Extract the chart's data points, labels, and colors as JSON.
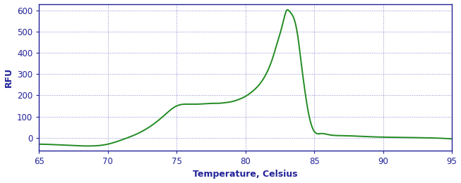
{
  "title": "",
  "xlabel": "Temperature, Celsius",
  "ylabel": "RFU",
  "xlim": [
    65,
    95
  ],
  "ylim": [
    -60,
    630
  ],
  "xticks": [
    65,
    70,
    75,
    80,
    85,
    90,
    95
  ],
  "yticks": [
    0,
    100,
    200,
    300,
    400,
    500,
    600
  ],
  "line_color": "#228B22",
  "line_width": 1.4,
  "background_color": "#ffffff",
  "grid_color": "#8888cc",
  "grid_linestyle": ":",
  "spine_color": "#222299",
  "tick_label_color": "#222299",
  "xlabel_color": "#222299",
  "ylabel_color": "#222299",
  "control_x": [
    65.0,
    66.0,
    67.0,
    68.0,
    69.0,
    70.0,
    71.0,
    72.0,
    73.0,
    74.0,
    75.0,
    76.0,
    77.0,
    77.5,
    78.0,
    78.5,
    79.0,
    79.5,
    80.0,
    80.5,
    81.0,
    81.5,
    82.0,
    82.3,
    82.6,
    82.9,
    83.0,
    83.2,
    83.5,
    83.8,
    84.0,
    84.3,
    84.6,
    85.0,
    85.5,
    86.0,
    87.0,
    88.0,
    89.0,
    90.0,
    91.0,
    92.0,
    93.0,
    95.0
  ],
  "control_y": [
    -30,
    -32,
    -35,
    -38,
    -38,
    -30,
    -10,
    15,
    50,
    100,
    150,
    158,
    160,
    162,
    162,
    165,
    170,
    180,
    195,
    218,
    250,
    300,
    380,
    445,
    510,
    585,
    600,
    595,
    565,
    480,
    380,
    230,
    110,
    30,
    20,
    15,
    10,
    8,
    5,
    3,
    2,
    1,
    0,
    -5
  ]
}
